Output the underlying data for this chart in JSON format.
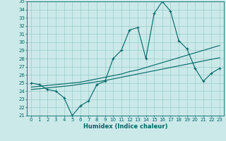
{
  "title": "",
  "xlabel": "Humidex (Indice chaleur)",
  "bg_color": "#cce9e9",
  "grid_color": "#99cccc",
  "line_color": "#006666",
  "x": [
    0,
    1,
    2,
    3,
    4,
    5,
    6,
    7,
    8,
    9,
    10,
    11,
    12,
    13,
    14,
    15,
    16,
    17,
    18,
    19,
    20,
    21,
    22,
    23
  ],
  "y_top": [
    25.0,
    24.8,
    24.2,
    24.0,
    23.2,
    21.0,
    22.2,
    22.8,
    24.8,
    25.2,
    28.0,
    29.0,
    31.5,
    31.8,
    28.0,
    33.5,
    35.0,
    33.8,
    30.2,
    29.2,
    26.8,
    25.2,
    26.2,
    26.8
  ],
  "y_line1": [
    24.5,
    24.6,
    24.7,
    24.8,
    24.9,
    25.0,
    25.1,
    25.3,
    25.5,
    25.7,
    25.9,
    26.1,
    26.4,
    26.6,
    26.9,
    27.2,
    27.5,
    27.8,
    28.1,
    28.4,
    28.7,
    29.0,
    29.3,
    29.6
  ],
  "y_line2": [
    24.2,
    24.3,
    24.4,
    24.5,
    24.6,
    24.7,
    24.85,
    25.0,
    25.15,
    25.3,
    25.5,
    25.7,
    25.9,
    26.1,
    26.3,
    26.5,
    26.7,
    26.9,
    27.1,
    27.3,
    27.5,
    27.7,
    27.9,
    28.1
  ],
  "ylim": [
    21,
    35
  ],
  "xlim": [
    -0.5,
    23.5
  ],
  "yticks": [
    21,
    22,
    23,
    24,
    25,
    26,
    27,
    28,
    29,
    30,
    31,
    32,
    33,
    34,
    35
  ],
  "xticks": [
    0,
    1,
    2,
    3,
    4,
    5,
    6,
    7,
    8,
    9,
    10,
    11,
    12,
    13,
    14,
    15,
    16,
    17,
    18,
    19,
    20,
    21,
    22,
    23
  ],
  "tick_fontsize": 5.0,
  "xlabel_fontsize": 6.0
}
